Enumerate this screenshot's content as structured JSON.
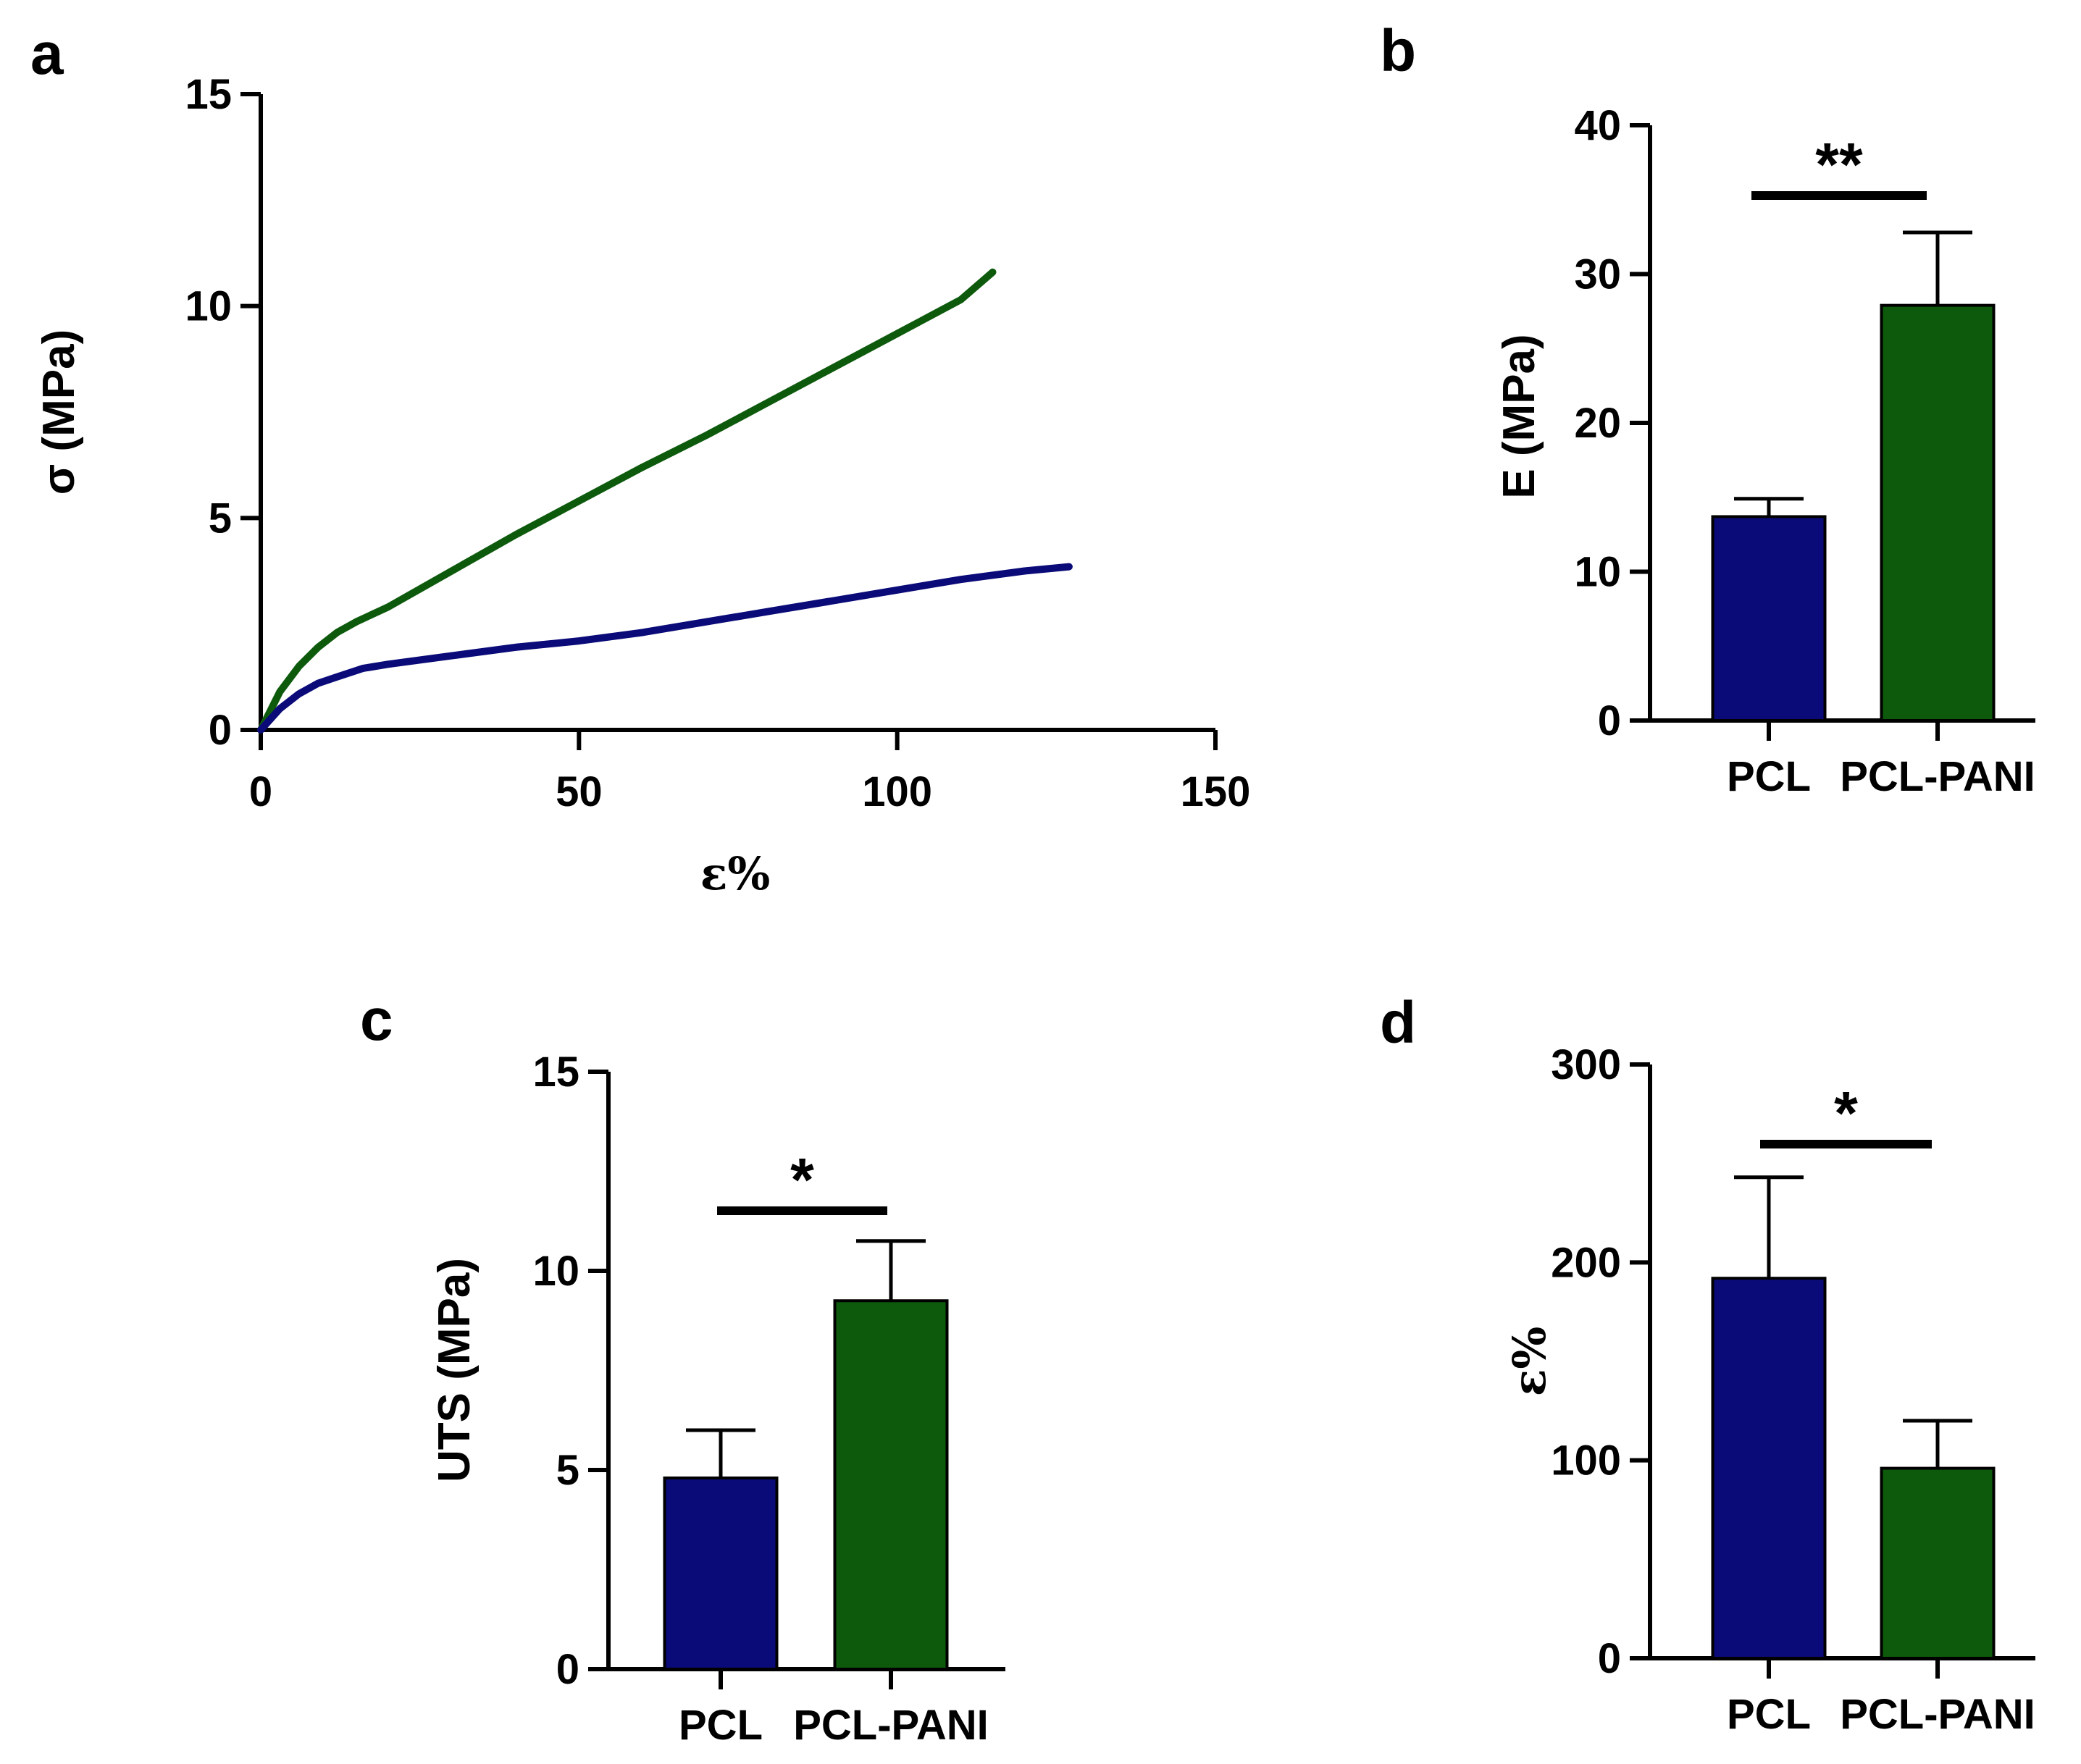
{
  "colors": {
    "pcl": "#0a0a78",
    "pcl_pani": "#0d5a0d",
    "axis": "#000000"
  },
  "chart_data": [
    {
      "panel": "a",
      "type": "line",
      "xlabel": "ε%",
      "ylabel": "σ (MPa)",
      "xlim": [
        0,
        150
      ],
      "ylim": [
        0,
        15
      ],
      "xticks": [
        "0",
        "50",
        "100",
        "150"
      ],
      "yticks": [
        "0",
        "5",
        "10",
        "15"
      ],
      "series": [
        {
          "name": "PCL-PANI",
          "color": "#0d5a0d",
          "x": [
            0,
            3,
            6,
            9,
            12,
            15,
            20,
            30,
            40,
            50,
            60,
            70,
            80,
            90,
            100,
            110,
            115
          ],
          "y": [
            0,
            0.9,
            1.5,
            1.95,
            2.3,
            2.55,
            2.9,
            3.75,
            4.6,
            5.4,
            6.2,
            6.95,
            7.75,
            8.55,
            9.35,
            10.15,
            10.8
          ]
        },
        {
          "name": "PCL",
          "color": "#0a0a78",
          "x": [
            0,
            3,
            6,
            9,
            12,
            16,
            20,
            30,
            40,
            50,
            60,
            70,
            80,
            90,
            100,
            110,
            120,
            127
          ],
          "y": [
            0,
            0.5,
            0.85,
            1.1,
            1.25,
            1.45,
            1.55,
            1.75,
            1.95,
            2.1,
            2.3,
            2.55,
            2.8,
            3.05,
            3.3,
            3.55,
            3.75,
            3.85
          ]
        }
      ]
    },
    {
      "panel": "b",
      "type": "bar",
      "ylabel": "E (MPa)",
      "ylim": [
        0,
        40
      ],
      "yticks": [
        "0",
        "10",
        "20",
        "30",
        "40"
      ],
      "categories": [
        "PCL",
        "PCL-PANI"
      ],
      "values": [
        13.7,
        27.9
      ],
      "errors": [
        1.2,
        4.9
      ],
      "significance": "**"
    },
    {
      "panel": "c",
      "type": "bar",
      "ylabel": "UTS (MPa)",
      "ylim": [
        0,
        15
      ],
      "yticks": [
        "0",
        "5",
        "10",
        "15"
      ],
      "categories": [
        "PCL",
        "PCL-PANI"
      ],
      "values": [
        4.8,
        9.25
      ],
      "errors": [
        1.2,
        1.5
      ],
      "significance": "*"
    },
    {
      "panel": "d",
      "type": "bar",
      "ylabel": "ε%",
      "ylim": [
        0,
        300
      ],
      "yticks": [
        "0",
        "100",
        "200",
        "300"
      ],
      "categories": [
        "PCL",
        "PCL-PANI"
      ],
      "values": [
        192,
        96
      ],
      "errors": [
        51,
        24
      ],
      "significance": "*"
    }
  ]
}
